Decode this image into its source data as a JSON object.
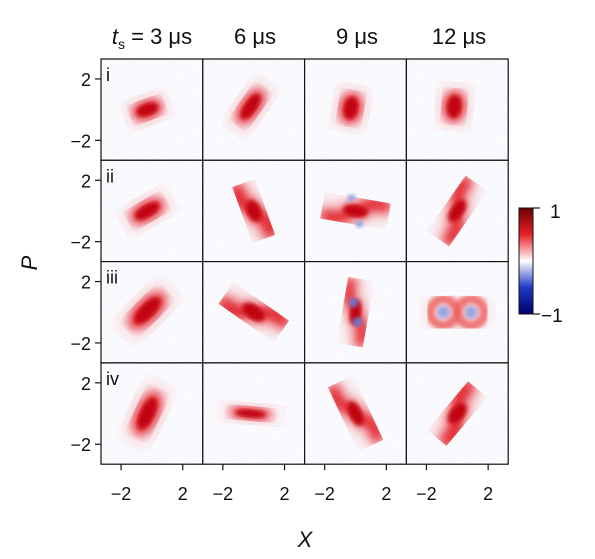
{
  "chart_data": {
    "type": "heatmap",
    "title": "",
    "col_headers": [
      {
        "var": "t",
        "sub": "s",
        "rest": " = 3 μs"
      },
      {
        "text": "6 μs"
      },
      {
        "text": "9 μs"
      },
      {
        "text": "12 μs"
      }
    ],
    "row_labels": [
      "i",
      "ii",
      "iii",
      "iv"
    ],
    "xlabel": "X",
    "ylabel": "P",
    "xlim": [
      -3.3,
      3.3
    ],
    "ylim": [
      -3.3,
      3.3
    ],
    "x_ticks": [
      -2,
      2
    ],
    "x_tick_labels": [
      "−2",
      "2"
    ],
    "y_ticks": [
      2,
      -2
    ],
    "y_tick_labels": [
      "2",
      "−2"
    ],
    "colorbar": {
      "min": -1,
      "max": 1,
      "tick_labels": [
        "1",
        "−1"
      ],
      "colors": [
        "#00006b",
        "#1f39c8",
        "#ffffff",
        "#e8202a",
        "#6b0000"
      ]
    },
    "panels": [
      {
        "row": "i",
        "time_us": 3,
        "shape": "ellipse",
        "cx": -0.3,
        "cy": 0.0,
        "major": 1.0,
        "minor": 0.6,
        "angle_deg": 20
      },
      {
        "row": "i",
        "time_us": 6,
        "shape": "ellipse",
        "cx": -0.2,
        "cy": 0.2,
        "major": 1.3,
        "minor": 0.6,
        "angle_deg": 55
      },
      {
        "row": "i",
        "time_us": 9,
        "shape": "ellipse",
        "cx": -0.3,
        "cy": 0.1,
        "major": 1.0,
        "minor": 0.7,
        "angle_deg": 80
      },
      {
        "row": "i",
        "time_us": 12,
        "shape": "ellipse",
        "cx": -0.2,
        "cy": 0.2,
        "major": 1.0,
        "minor": 0.7,
        "angle_deg": 85
      },
      {
        "row": "ii",
        "time_us": 3,
        "shape": "ellipse",
        "cx": -0.3,
        "cy": 0.0,
        "major": 1.2,
        "minor": 0.6,
        "angle_deg": 30
      },
      {
        "row": "ii",
        "time_us": 6,
        "shape": "s-curve",
        "cx": 0.0,
        "cy": 0.0,
        "major": 1.6,
        "minor": 0.45,
        "angle_deg": -70
      },
      {
        "row": "ii",
        "time_us": 9,
        "shape": "s-curve",
        "cx": 0.0,
        "cy": 0.0,
        "major": 1.8,
        "minor": 0.4,
        "angle_deg": -10
      },
      {
        "row": "ii",
        "time_us": 12,
        "shape": "s-curve",
        "cx": 0.0,
        "cy": 0.0,
        "major": 1.8,
        "minor": 0.4,
        "angle_deg": 55
      },
      {
        "row": "iii",
        "time_us": 3,
        "shape": "ellipse",
        "cx": -0.3,
        "cy": 0.1,
        "major": 1.5,
        "minor": 0.7,
        "angle_deg": 45
      },
      {
        "row": "iii",
        "time_us": 6,
        "shape": "s-curve",
        "cx": 0.0,
        "cy": 0.0,
        "major": 1.8,
        "minor": 0.45,
        "angle_deg": -35
      },
      {
        "row": "iii",
        "time_us": 9,
        "shape": "s-curve",
        "cx": 0.0,
        "cy": 0.0,
        "major": 1.8,
        "minor": 0.35,
        "angle_deg": 80
      },
      {
        "row": "iii",
        "time_us": 12,
        "shape": "figure-eight",
        "cx": 0.0,
        "cy": 0.0,
        "major": 1.8,
        "minor": 0.9,
        "angle_deg": 0
      },
      {
        "row": "iv",
        "time_us": 3,
        "shape": "ellipse",
        "cx": -0.3,
        "cy": 0.0,
        "major": 1.5,
        "minor": 0.7,
        "angle_deg": 65
      },
      {
        "row": "iv",
        "time_us": 6,
        "shape": "ellipse",
        "cx": -0.2,
        "cy": 0.0,
        "major": 1.4,
        "minor": 0.4,
        "angle_deg": -5
      },
      {
        "row": "iv",
        "time_us": 9,
        "shape": "s-curve",
        "cx": 0.0,
        "cy": 0.0,
        "major": 1.9,
        "minor": 0.4,
        "angle_deg": -65
      },
      {
        "row": "iv",
        "time_us": 12,
        "shape": "s-curve",
        "cx": 0.0,
        "cy": 0.0,
        "major": 1.7,
        "minor": 0.45,
        "angle_deg": 50
      }
    ]
  }
}
